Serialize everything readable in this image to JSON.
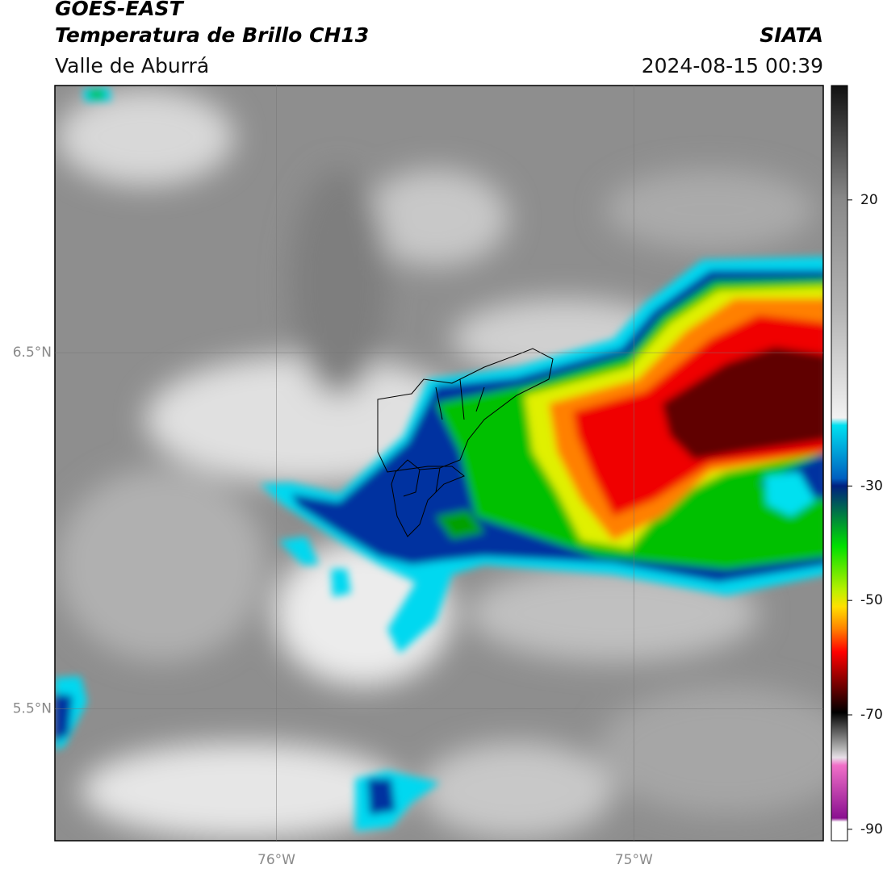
{
  "header": {
    "title": "GOES-EAST",
    "subtitle": "Temperatura de Brillo CH13",
    "region": "Valle de Aburrá",
    "source": "SIATA",
    "datetime": "2024-08-15 00:39"
  },
  "map": {
    "xlim": [
      -76.62,
      -74.47
    ],
    "ylim": [
      5.13,
      7.25
    ],
    "xticks": [
      {
        "value": -76,
        "label": "76°W"
      },
      {
        "value": -75,
        "label": "75°W"
      }
    ],
    "yticks": [
      {
        "value": 6.5,
        "label": "6.5°N"
      },
      {
        "value": 5.5,
        "label": "5.5°N"
      }
    ]
  },
  "colorbar": {
    "lim": [
      -92,
      40
    ],
    "ticks": [
      20,
      -30,
      -50,
      -70,
      -90
    ]
  }
}
